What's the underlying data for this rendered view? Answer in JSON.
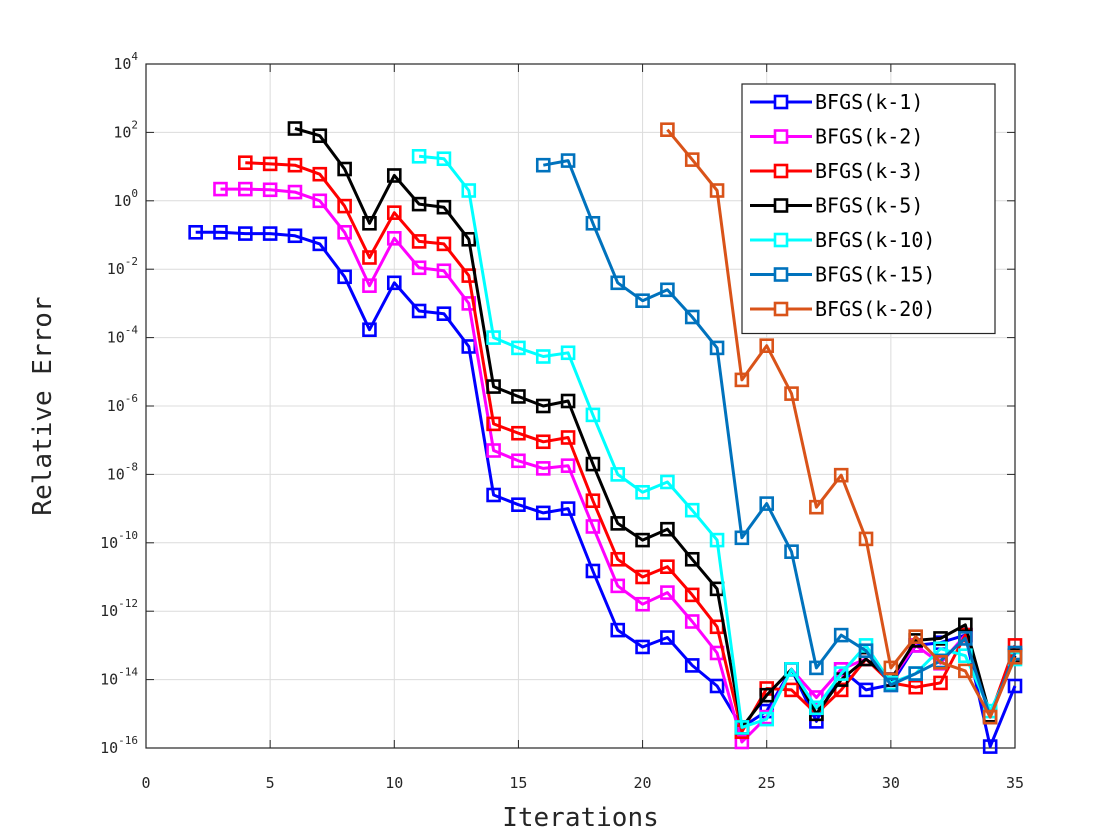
{
  "chart_data": {
    "type": "line",
    "title": "",
    "xlabel": "Iterations",
    "ylabel": "Relative Error",
    "xlim": [
      0,
      35
    ],
    "ylim_log10": [
      -16,
      4
    ],
    "yscale": "log",
    "grid": true,
    "legend_position": "top-right",
    "xticks": [
      0,
      5,
      10,
      15,
      20,
      25,
      30,
      35
    ],
    "yticks": [
      {
        "base": "10",
        "exp": "4"
      },
      {
        "base": "10",
        "exp": "2"
      },
      {
        "base": "10",
        "exp": "0"
      },
      {
        "base": "10",
        "exp": "-2"
      },
      {
        "base": "10",
        "exp": "-4"
      },
      {
        "base": "10",
        "exp": "-6"
      },
      {
        "base": "10",
        "exp": "-8"
      },
      {
        "base": "10",
        "exp": "-10"
      },
      {
        "base": "10",
        "exp": "-12"
      },
      {
        "base": "10",
        "exp": "-14"
      },
      {
        "base": "10",
        "exp": "-16"
      }
    ],
    "series": [
      {
        "name": "BFGS(k-1)",
        "color": "#0000ff",
        "x": [
          2,
          3,
          4,
          5,
          6,
          7,
          8,
          9,
          10,
          11,
          12,
          13,
          14,
          15,
          16,
          17,
          18,
          19,
          20,
          21,
          22,
          23,
          24,
          25,
          26,
          27,
          28,
          29,
          30,
          31,
          32,
          33,
          34,
          35
        ],
        "y": [
          0.12,
          0.12,
          0.11,
          0.11,
          0.095,
          0.055,
          0.006,
          0.00017,
          0.004,
          0.0006,
          0.0005,
          5.5e-05,
          2.5e-09,
          1.3e-09,
          7.5e-10,
          1e-09,
          1.5e-11,
          2.8e-13,
          9e-14,
          1.7e-13,
          2.6e-14,
          6.5e-15,
          4e-16,
          1.2e-15,
          2e-14,
          6e-16,
          2e-14,
          5e-15,
          7e-15,
          1e-13,
          1.2e-13,
          2e-13,
          1.1e-16,
          6.5e-15
        ]
      },
      {
        "name": "BFGS(k-2)",
        "color": "#ff00ff",
        "x": [
          3,
          4,
          5,
          6,
          7,
          8,
          9,
          10,
          11,
          12,
          13,
          14,
          15,
          16,
          17,
          18,
          19,
          20,
          21,
          22,
          23,
          24,
          25,
          26,
          27,
          28,
          29,
          30,
          31,
          32,
          33,
          34,
          35
        ],
        "y": [
          2.2,
          2.2,
          2.1,
          1.8,
          1.0,
          0.12,
          0.0033,
          0.08,
          0.011,
          0.009,
          0.001,
          5e-08,
          2.5e-08,
          1.5e-08,
          1.8e-08,
          3e-10,
          5.5e-12,
          1.6e-12,
          3.5e-12,
          5e-13,
          6e-14,
          1.5e-16,
          8e-16,
          2e-14,
          3e-15,
          2e-14,
          4e-14,
          1e-14,
          1e-13,
          3e-14,
          2e-13,
          8e-16,
          5e-14
        ]
      },
      {
        "name": "BFGS(k-3)",
        "color": "#ff0000",
        "x": [
          4,
          5,
          6,
          7,
          8,
          9,
          10,
          11,
          12,
          13,
          14,
          15,
          16,
          17,
          18,
          19,
          20,
          21,
          22,
          23,
          24,
          25,
          26,
          27,
          28,
          29,
          30,
          31,
          32,
          33,
          34,
          35
        ],
        "y": [
          13,
          12,
          11,
          6,
          0.7,
          0.022,
          0.45,
          0.065,
          0.055,
          0.0065,
          3e-07,
          1.6e-07,
          9e-08,
          1.2e-07,
          1.7e-09,
          3.3e-11,
          1e-11,
          2e-11,
          3e-12,
          3.5e-13,
          3e-16,
          5.5e-15,
          5e-15,
          1e-15,
          5e-15,
          4e-14,
          8e-15,
          6e-15,
          8e-15,
          2e-13,
          9e-16,
          1e-13
        ]
      },
      {
        "name": "BFGS(k-5)",
        "color": "#000000",
        "x": [
          6,
          7,
          8,
          9,
          10,
          11,
          12,
          13,
          14,
          15,
          16,
          17,
          18,
          19,
          20,
          21,
          22,
          23,
          24,
          25,
          26,
          27,
          28,
          29,
          30,
          31,
          32,
          33,
          34,
          35
        ],
        "y": [
          130,
          80,
          8.5,
          0.22,
          5.5,
          0.8,
          0.65,
          0.075,
          3.7e-06,
          1.9e-06,
          1e-06,
          1.4e-06,
          2e-08,
          3.7e-10,
          1.2e-10,
          2.5e-10,
          3.3e-11,
          4.5e-12,
          4e-16,
          3.5e-15,
          2e-14,
          1e-15,
          1e-14,
          4e-14,
          1e-14,
          1.4e-13,
          1.6e-13,
          4e-13,
          9e-16,
          5e-14
        ]
      },
      {
        "name": "BFGS(k-10)",
        "color": "#00ffff",
        "x": [
          11,
          12,
          13,
          14,
          15,
          16,
          17,
          18,
          19,
          20,
          21,
          22,
          23,
          24,
          25,
          26,
          27,
          28,
          29,
          30,
          31,
          32,
          33,
          34,
          35
        ],
        "y": [
          20,
          17,
          2,
          0.0001,
          5e-05,
          2.8e-05,
          3.6e-05,
          5.5e-07,
          1e-08,
          3e-09,
          6e-09,
          9e-10,
          1.2e-10,
          4e-16,
          7e-16,
          2e-14,
          1.5e-15,
          1.5e-14,
          1e-13,
          8e-15,
          1.5e-14,
          8e-14,
          5e-14,
          1.2e-15,
          4e-14
        ]
      },
      {
        "name": "BFGS(k-15)",
        "color": "#0072bd",
        "x": [
          16,
          17,
          18,
          19,
          20,
          21,
          22,
          23,
          24,
          25,
          26,
          27,
          28,
          29,
          30,
          31,
          32,
          33,
          34,
          35
        ],
        "y": [
          11,
          15,
          0.22,
          0.004,
          0.0012,
          0.0025,
          0.0004,
          5e-05,
          1.4e-10,
          1.4e-09,
          5.5e-11,
          2.2e-14,
          2e-13,
          7e-14,
          7e-15,
          1.5e-14,
          3.5e-14,
          1.6e-13,
          8e-16,
          6e-14
        ]
      },
      {
        "name": "BFGS(k-20)",
        "color": "#d95319",
        "x": [
          21,
          22,
          23,
          24,
          25,
          26,
          27,
          28,
          29,
          30,
          31,
          32,
          33,
          34,
          35
        ],
        "y": [
          120,
          16,
          2,
          5.8e-06,
          5.8e-05,
          2.3e-06,
          1.1e-09,
          9.5e-09,
          1.3e-10,
          2.2e-14,
          1.8e-13,
          3.2e-14,
          1.8e-14,
          8e-16,
          4.5e-14
        ]
      }
    ]
  }
}
